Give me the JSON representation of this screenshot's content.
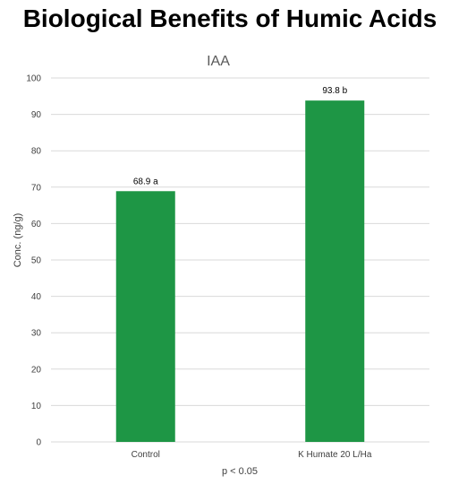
{
  "page": {
    "title": "Biological Benefits of Humic Acids"
  },
  "chart_data": {
    "type": "bar",
    "title": "IAA",
    "categories": [
      "Control",
      "K Humate 20 L/Ha"
    ],
    "values": [
      68.9,
      93.8
    ],
    "data_labels": [
      "68.9 a",
      "93.8 b"
    ],
    "xlabel": "",
    "ylabel": "Conc. (ng/g)",
    "ylim": [
      0,
      100
    ],
    "yticks": [
      0,
      10,
      20,
      30,
      40,
      50,
      60,
      70,
      80,
      90,
      100
    ],
    "grid": true,
    "legend": "none",
    "note": "p < 0.05",
    "bar_color": "#1e9645",
    "grid_color": "#d9d9d9"
  }
}
